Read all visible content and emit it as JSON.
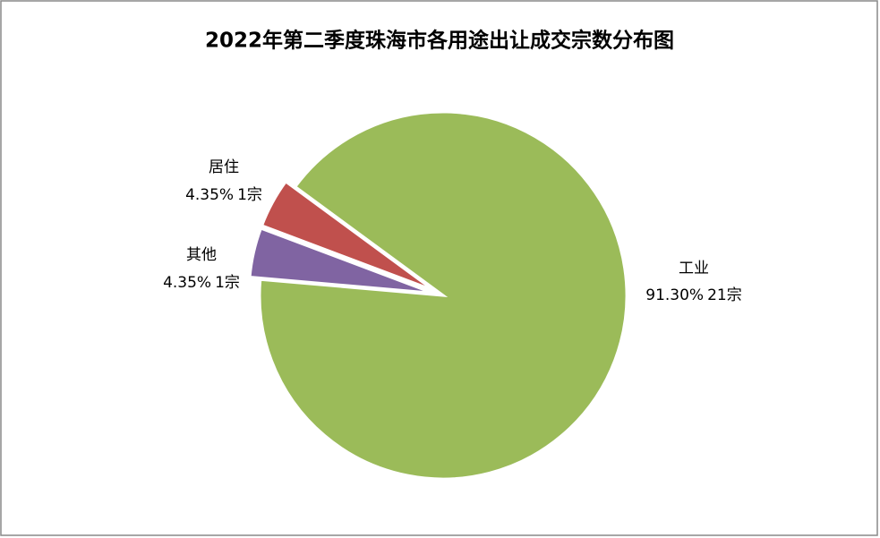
{
  "chart_data": {
    "type": "pie",
    "title": "2022年第二季度珠海市各用途出让成交宗数分布图",
    "categories": [
      "工业",
      "其他",
      "居住"
    ],
    "values": [
      91.3,
      4.35,
      4.35
    ],
    "value_labels": [
      "91.30%",
      "4.35%",
      "4.35%"
    ],
    "counts": [
      21,
      1,
      1
    ],
    "count_labels": [
      "21宗",
      "1宗",
      "1宗"
    ],
    "colors": [
      "#9bbb59",
      "#8064a2",
      "#c0504d"
    ]
  }
}
